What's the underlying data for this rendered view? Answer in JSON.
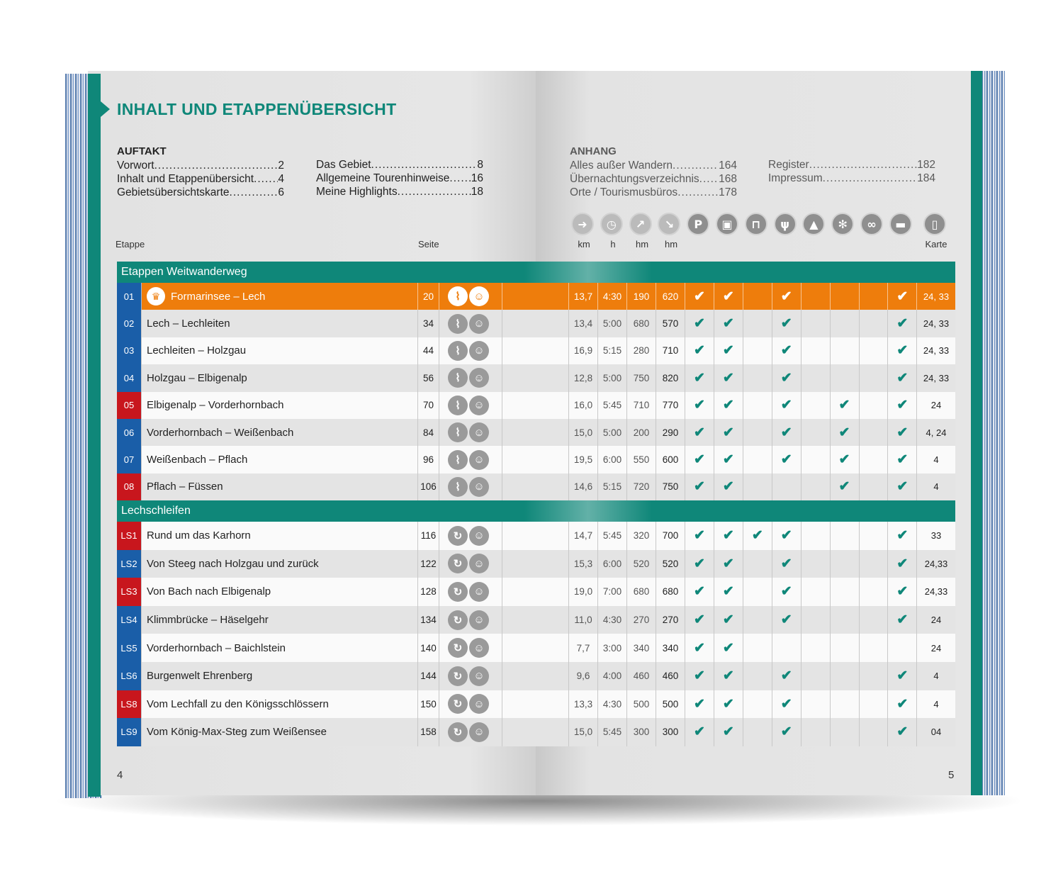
{
  "title": "INHALT UND ETAPPENÜBERSICHT",
  "auftakt": {
    "heading": "AUFTAKT",
    "col1": [
      {
        "label": "Vorwort",
        "page": "2"
      },
      {
        "label": "Inhalt und Etappenübersicht",
        "page": "4"
      },
      {
        "label": "Gebietsübersichtskarte",
        "page": "6"
      }
    ],
    "col2": [
      {
        "label": "Das Gebiet",
        "page": "8"
      },
      {
        "label": "Allgemeine Tourenhinweise",
        "page": "16"
      },
      {
        "label": "Meine Highlights",
        "page": "18"
      }
    ]
  },
  "anhang": {
    "heading": "ANHANG",
    "col1": [
      {
        "label": "Alles außer Wandern",
        "page": "164"
      },
      {
        "label": "Übernachtungsverzeichnis",
        "page": "168"
      },
      {
        "label": "Orte / Tourismusbüros",
        "page": "178"
      }
    ],
    "col2": [
      {
        "label": "Register",
        "page": "182"
      },
      {
        "label": "Impressum",
        "page": "184"
      }
    ]
  },
  "headers": {
    "etappe": "Etappe",
    "seite": "Seite",
    "km": "km",
    "h": "h",
    "hm_up": "hm",
    "hm_down": "hm",
    "karte": "Karte"
  },
  "icons": [
    "signpost-icon",
    "clock-icon",
    "ascent-icon",
    "descent-icon",
    "parking-icon",
    "bus-icon",
    "cable-car-icon",
    "restaurant-icon",
    "camping-icon",
    "winter-icon",
    "bike-icon",
    "bed-icon",
    "phone-icon"
  ],
  "section1": "Etappen Weitwanderweg",
  "section2": "Lechschleifen",
  "stages": [
    {
      "num": "01",
      "color": "blue",
      "name": "Formarinsee – Lech",
      "page": "20",
      "km": "13,7",
      "h": "4:30",
      "up": "190",
      "down": "620",
      "checks": [
        1,
        1,
        0,
        1,
        0,
        0,
        0,
        1
      ],
      "karte": "24, 33",
      "highlight": true
    },
    {
      "num": "02",
      "color": "blue",
      "name": "Lech – Lechleiten",
      "page": "34",
      "km": "13,4",
      "h": "5:00",
      "up": "680",
      "down": "570",
      "checks": [
        1,
        1,
        0,
        1,
        0,
        0,
        0,
        1
      ],
      "karte": "24, 33"
    },
    {
      "num": "03",
      "color": "blue",
      "name": "Lechleiten – Holzgau",
      "page": "44",
      "km": "16,9",
      "h": "5:15",
      "up": "280",
      "down": "710",
      "checks": [
        1,
        1,
        0,
        1,
        0,
        0,
        0,
        1
      ],
      "karte": "24, 33"
    },
    {
      "num": "04",
      "color": "blue",
      "name": "Holzgau – Elbigenalp",
      "page": "56",
      "km": "12,8",
      "h": "5:00",
      "up": "750",
      "down": "820",
      "checks": [
        1,
        1,
        0,
        1,
        0,
        0,
        0,
        1
      ],
      "karte": "24, 33"
    },
    {
      "num": "05",
      "color": "red",
      "name": "Elbigenalp – Vorderhornbach",
      "page": "70",
      "km": "16,0",
      "h": "5:45",
      "up": "710",
      "down": "770",
      "checks": [
        1,
        1,
        0,
        1,
        0,
        1,
        0,
        1
      ],
      "karte": "24"
    },
    {
      "num": "06",
      "color": "blue",
      "name": "Vorderhornbach – Weißenbach",
      "page": "84",
      "km": "15,0",
      "h": "5:00",
      "up": "200",
      "down": "290",
      "checks": [
        1,
        1,
        0,
        1,
        0,
        1,
        0,
        1
      ],
      "karte": "4, 24"
    },
    {
      "num": "07",
      "color": "blue",
      "name": "Weißenbach – Pflach",
      "page": "96",
      "km": "19,5",
      "h": "6:00",
      "up": "550",
      "down": "600",
      "checks": [
        1,
        1,
        0,
        1,
        0,
        1,
        0,
        1
      ],
      "karte": "4"
    },
    {
      "num": "08",
      "color": "red",
      "name": "Pflach – Füssen",
      "page": "106",
      "km": "14,6",
      "h": "5:15",
      "up": "720",
      "down": "750",
      "checks": [
        1,
        1,
        0,
        0,
        0,
        1,
        0,
        1
      ],
      "karte": "4"
    }
  ],
  "loops": [
    {
      "num": "LS1",
      "color": "red",
      "name": "Rund um das Karhorn",
      "page": "116",
      "km": "14,7",
      "h": "5:45",
      "up": "320",
      "down": "700",
      "checks": [
        1,
        1,
        1,
        1,
        0,
        0,
        0,
        1
      ],
      "karte": "33"
    },
    {
      "num": "LS2",
      "color": "blue",
      "name": "Von Steeg nach Holzgau und zurück",
      "page": "122",
      "km": "15,3",
      "h": "6:00",
      "up": "520",
      "down": "520",
      "checks": [
        1,
        1,
        0,
        1,
        0,
        0,
        0,
        1
      ],
      "karte": "24,33"
    },
    {
      "num": "LS3",
      "color": "red",
      "name": "Von Bach nach Elbigenalp",
      "page": "128",
      "km": "19,0",
      "h": "7:00",
      "up": "680",
      "down": "680",
      "checks": [
        1,
        1,
        0,
        1,
        0,
        0,
        0,
        1
      ],
      "karte": "24,33"
    },
    {
      "num": "LS4",
      "color": "blue",
      "name": "Klimmbrücke – Häselgehr",
      "page": "134",
      "km": "11,0",
      "h": "4:30",
      "up": "270",
      "down": "270",
      "checks": [
        1,
        1,
        0,
        1,
        0,
        0,
        0,
        1
      ],
      "karte": "24"
    },
    {
      "num": "LS5",
      "color": "blue",
      "name": "Vorderhornbach – Baichlstein",
      "page": "140",
      "km": "7,7",
      "h": "3:00",
      "up": "340",
      "down": "340",
      "checks": [
        1,
        1,
        0,
        0,
        0,
        0,
        0,
        0
      ],
      "karte": "24"
    },
    {
      "num": "LS6",
      "color": "blue",
      "name": "Burgenwelt Ehrenberg",
      "page": "144",
      "km": "9,6",
      "h": "4:00",
      "up": "460",
      "down": "460",
      "checks": [
        1,
        1,
        0,
        1,
        0,
        0,
        0,
        1
      ],
      "karte": "4"
    },
    {
      "num": "LS8",
      "color": "red",
      "name": "Vom Lechfall zu den Königsschlössern",
      "page": "150",
      "km": "13,3",
      "h": "4:30",
      "up": "500",
      "down": "500",
      "checks": [
        1,
        1,
        0,
        1,
        0,
        0,
        0,
        1
      ],
      "karte": "4"
    },
    {
      "num": "LS9",
      "color": "blue",
      "name": "Vom König-Max-Steg zum Weißensee",
      "page": "158",
      "km": "15,0",
      "h": "5:45",
      "up": "300",
      "down": "300",
      "checks": [
        1,
        1,
        0,
        1,
        0,
        0,
        0,
        1
      ],
      "karte": "04"
    }
  ],
  "page_left": "4",
  "page_right": "5"
}
